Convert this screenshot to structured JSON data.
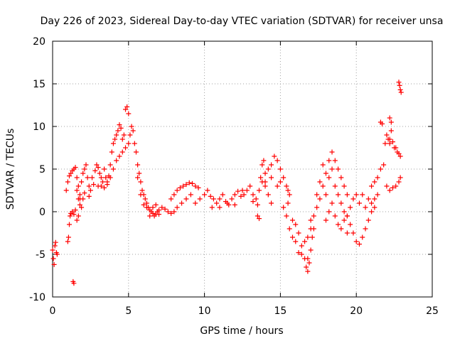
{
  "chart_data": {
    "type": "scatter",
    "title": "Day 226 of 2023, Sidereal Day-to-day VTEC variation (SDTVAR) for receiver unsa",
    "xlabel": "GPS time / hours",
    "ylabel": "SDTVAR / TECUs",
    "xlim": [
      0,
      25
    ],
    "ylim": [
      -10,
      20
    ],
    "x_ticks": [
      0,
      5,
      10,
      15,
      20,
      25
    ],
    "y_ticks": [
      -10,
      -5,
      0,
      5,
      10,
      15,
      20
    ],
    "grid": true,
    "marker": "+",
    "colors": {
      "series": "#ff0000",
      "grid": "#a0a0a0",
      "axis": "#000000"
    },
    "series": [
      {
        "name": "SDTVAR",
        "points": [
          [
            0.0,
            -4.5
          ],
          [
            0.05,
            -5.5
          ],
          [
            0.1,
            -6.2
          ],
          [
            0.15,
            -4.0
          ],
          [
            0.2,
            -3.6
          ],
          [
            0.25,
            -4.8
          ],
          [
            0.3,
            -5.0
          ],
          [
            1.0,
            -3.5
          ],
          [
            1.05,
            -3.0
          ],
          [
            1.1,
            -1.5
          ],
          [
            1.15,
            -0.5
          ],
          [
            1.2,
            -0.2
          ],
          [
            1.3,
            0.0
          ],
          [
            1.4,
            -0.3
          ],
          [
            1.5,
            0.2
          ],
          [
            1.6,
            -1.0
          ],
          [
            1.7,
            -0.5
          ],
          [
            1.8,
            1.5
          ],
          [
            1.9,
            0.5
          ],
          [
            2.0,
            1.5
          ],
          [
            1.35,
            -8.2
          ],
          [
            1.4,
            -8.4
          ],
          [
            0.9,
            2.5
          ],
          [
            1.0,
            3.5
          ],
          [
            1.1,
            4.2
          ],
          [
            1.2,
            4.5
          ],
          [
            1.3,
            4.8
          ],
          [
            1.4,
            5.0
          ],
          [
            1.5,
            5.2
          ],
          [
            1.6,
            4.0
          ],
          [
            1.7,
            3.0
          ],
          [
            1.8,
            2.0
          ],
          [
            1.9,
            3.5
          ],
          [
            2.0,
            4.5
          ],
          [
            2.1,
            5.0
          ],
          [
            2.2,
            5.5
          ],
          [
            2.3,
            4.0
          ],
          [
            2.4,
            3.0
          ],
          [
            2.5,
            2.5
          ],
          [
            1.6,
            2.5
          ],
          [
            1.7,
            1.5
          ],
          [
            1.8,
            0.8
          ],
          [
            2.1,
            2.2
          ],
          [
            2.4,
            1.8
          ],
          [
            2.6,
            4.0
          ],
          [
            2.7,
            3.2
          ],
          [
            2.8,
            4.8
          ],
          [
            2.9,
            5.5
          ],
          [
            3.0,
            5.2
          ],
          [
            3.1,
            4.5
          ],
          [
            3.2,
            3.0
          ],
          [
            3.3,
            3.5
          ],
          [
            3.4,
            5.0
          ],
          [
            3.5,
            4.0
          ],
          [
            3.6,
            3.5
          ],
          [
            3.7,
            4.2
          ],
          [
            3.8,
            5.5
          ],
          [
            3.9,
            7.0
          ],
          [
            4.0,
            8.0
          ],
          [
            4.1,
            8.5
          ],
          [
            4.2,
            9.0
          ],
          [
            4.3,
            9.5
          ],
          [
            4.4,
            10.2
          ],
          [
            4.5,
            9.8
          ],
          [
            4.6,
            8.5
          ],
          [
            4.7,
            9.0
          ],
          [
            4.8,
            12.0
          ],
          [
            4.9,
            12.3
          ],
          [
            5.0,
            11.5
          ],
          [
            3.0,
            3.0
          ],
          [
            3.2,
            4.0
          ],
          [
            3.4,
            2.8
          ],
          [
            3.6,
            3.2
          ],
          [
            3.8,
            4.0
          ],
          [
            4.0,
            5.0
          ],
          [
            4.2,
            6.0
          ],
          [
            4.4,
            6.5
          ],
          [
            4.6,
            7.0
          ],
          [
            4.8,
            7.5
          ],
          [
            5.0,
            8.0
          ],
          [
            5.1,
            9.0
          ],
          [
            5.2,
            10.0
          ],
          [
            5.3,
            9.5
          ],
          [
            5.4,
            8.0
          ],
          [
            5.5,
            7.0
          ],
          [
            5.6,
            5.5
          ],
          [
            5.7,
            4.5
          ],
          [
            5.8,
            3.5
          ],
          [
            5.9,
            2.5
          ],
          [
            6.0,
            2.0
          ],
          [
            6.1,
            1.5
          ],
          [
            6.2,
            1.0
          ],
          [
            6.3,
            0.5
          ],
          [
            6.4,
            0.2
          ],
          [
            6.5,
            0.0
          ],
          [
            6.6,
            -0.2
          ],
          [
            6.7,
            -0.5
          ],
          [
            6.8,
            -0.3
          ],
          [
            6.9,
            0.0
          ],
          [
            7.0,
            0.2
          ],
          [
            7.2,
            0.5
          ],
          [
            7.4,
            0.3
          ],
          [
            7.6,
            0.0
          ],
          [
            7.8,
            -0.2
          ],
          [
            8.0,
            0.0
          ],
          [
            5.6,
            4.0
          ],
          [
            5.8,
            2.0
          ],
          [
            6.0,
            0.8
          ],
          [
            6.2,
            0.5
          ],
          [
            6.4,
            -0.5
          ],
          [
            6.6,
            0.5
          ],
          [
            6.8,
            0.8
          ],
          [
            7.0,
            -0.3
          ],
          [
            7.8,
            1.5
          ],
          [
            8.0,
            2.0
          ],
          [
            8.2,
            2.5
          ],
          [
            8.4,
            2.8
          ],
          [
            8.6,
            3.0
          ],
          [
            8.8,
            3.2
          ],
          [
            9.0,
            3.4
          ],
          [
            9.2,
            3.3
          ],
          [
            9.4,
            3.0
          ],
          [
            9.6,
            2.8
          ],
          [
            8.2,
            0.5
          ],
          [
            8.5,
            1.0
          ],
          [
            8.8,
            1.5
          ],
          [
            9.1,
            2.0
          ],
          [
            9.4,
            1.0
          ],
          [
            9.7,
            1.5
          ],
          [
            10.0,
            2.0
          ],
          [
            10.2,
            2.5
          ],
          [
            10.4,
            1.8
          ],
          [
            10.6,
            1.5
          ],
          [
            10.8,
            1.0
          ],
          [
            11.0,
            1.5
          ],
          [
            11.2,
            2.0
          ],
          [
            11.4,
            1.2
          ],
          [
            11.6,
            0.8
          ],
          [
            11.8,
            1.5
          ],
          [
            12.0,
            2.0
          ],
          [
            12.2,
            2.4
          ],
          [
            12.4,
            1.8
          ],
          [
            12.6,
            2.0
          ],
          [
            10.5,
            0.5
          ],
          [
            11.0,
            0.5
          ],
          [
            11.5,
            1.0
          ],
          [
            12.0,
            0.8
          ],
          [
            12.5,
            2.5
          ],
          [
            12.8,
            2.5
          ],
          [
            13.0,
            3.0
          ],
          [
            13.2,
            2.0
          ],
          [
            13.4,
            1.5
          ],
          [
            13.6,
            2.5
          ],
          [
            13.8,
            3.5
          ],
          [
            14.0,
            3.0
          ],
          [
            14.2,
            2.0
          ],
          [
            14.4,
            1.0
          ],
          [
            13.2,
            1.2
          ],
          [
            13.5,
            0.8
          ],
          [
            13.5,
            -0.5
          ],
          [
            13.6,
            -0.8
          ],
          [
            13.7,
            4.0
          ],
          [
            13.8,
            5.5
          ],
          [
            13.9,
            6.0
          ],
          [
            14.0,
            4.5
          ],
          [
            14.2,
            5.0
          ],
          [
            14.4,
            5.5
          ],
          [
            14.6,
            6.5
          ],
          [
            14.8,
            6.0
          ],
          [
            15.0,
            5.0
          ],
          [
            15.2,
            4.0
          ],
          [
            15.4,
            3.0
          ],
          [
            15.6,
            2.0
          ],
          [
            14.0,
            3.5
          ],
          [
            14.4,
            4.0
          ],
          [
            14.8,
            3.0
          ],
          [
            15.0,
            3.5
          ],
          [
            15.5,
            1.0
          ],
          [
            15.5,
            2.5
          ],
          [
            15.2,
            0.5
          ],
          [
            15.4,
            -0.5
          ],
          [
            15.6,
            -2.0
          ],
          [
            15.8,
            -3.0
          ],
          [
            16.0,
            -1.5
          ],
          [
            16.2,
            -2.5
          ],
          [
            16.4,
            -4.0
          ],
          [
            16.6,
            -5.5
          ],
          [
            16.7,
            -6.5
          ],
          [
            16.8,
            -7.0
          ],
          [
            16.9,
            -6.0
          ],
          [
            17.0,
            -4.5
          ],
          [
            17.1,
            -3.0
          ],
          [
            17.2,
            -2.0
          ],
          [
            15.8,
            -1.0
          ],
          [
            16.0,
            -3.5
          ],
          [
            16.2,
            -4.8
          ],
          [
            16.4,
            -5.0
          ],
          [
            16.6,
            -3.5
          ],
          [
            16.8,
            -5.5
          ],
          [
            17.0,
            -2.0
          ],
          [
            16.8,
            -3.0
          ],
          [
            17.0,
            -1.0
          ],
          [
            17.2,
            -0.5
          ],
          [
            17.4,
            0.5
          ],
          [
            17.6,
            1.5
          ],
          [
            17.8,
            3.0
          ],
          [
            18.0,
            4.5
          ],
          [
            18.2,
            6.0
          ],
          [
            18.4,
            7.0
          ],
          [
            18.6,
            6.0
          ],
          [
            18.8,
            5.0
          ],
          [
            19.0,
            4.0
          ],
          [
            19.2,
            3.0
          ],
          [
            19.4,
            2.0
          ],
          [
            17.4,
            2.0
          ],
          [
            17.6,
            3.5
          ],
          [
            17.8,
            5.5
          ],
          [
            18.0,
            2.0
          ],
          [
            18.2,
            4.0
          ],
          [
            18.4,
            5.0
          ],
          [
            18.6,
            3.0
          ],
          [
            18.8,
            2.0
          ],
          [
            19.0,
            1.0
          ],
          [
            19.2,
            0.0
          ],
          [
            19.4,
            -0.5
          ],
          [
            18.0,
            -1.0
          ],
          [
            18.2,
            0.0
          ],
          [
            18.4,
            1.0
          ],
          [
            18.6,
            -0.5
          ],
          [
            18.8,
            -1.5
          ],
          [
            19.0,
            -2.0
          ],
          [
            19.2,
            -1.0
          ],
          [
            19.4,
            -0.5
          ],
          [
            19.4,
            -2.5
          ],
          [
            19.6,
            -1.5
          ],
          [
            19.8,
            -2.5
          ],
          [
            20.0,
            -3.5
          ],
          [
            20.2,
            -3.8
          ],
          [
            20.4,
            -3.0
          ],
          [
            20.6,
            -2.0
          ],
          [
            20.8,
            -1.0
          ],
          [
            21.0,
            0.0
          ],
          [
            21.2,
            0.5
          ],
          [
            19.6,
            0.5
          ],
          [
            19.8,
            1.5
          ],
          [
            20.0,
            2.0
          ],
          [
            20.2,
            1.0
          ],
          [
            20.4,
            2.0
          ],
          [
            20.6,
            0.5
          ],
          [
            20.8,
            1.5
          ],
          [
            21.0,
            1.0
          ],
          [
            21.2,
            1.5
          ],
          [
            21.4,
            2.0
          ],
          [
            21.0,
            3.0
          ],
          [
            21.2,
            3.5
          ],
          [
            21.4,
            4.0
          ],
          [
            21.6,
            5.0
          ],
          [
            21.8,
            5.5
          ],
          [
            22.0,
            3.0
          ],
          [
            22.2,
            2.5
          ],
          [
            22.4,
            2.8
          ],
          [
            22.6,
            3.0
          ],
          [
            22.8,
            3.5
          ],
          [
            22.9,
            4.0
          ],
          [
            21.6,
            10.5
          ],
          [
            21.7,
            10.3
          ],
          [
            21.9,
            8.0
          ],
          [
            22.0,
            9.0
          ],
          [
            22.1,
            8.5
          ],
          [
            22.2,
            8.0
          ],
          [
            22.3,
            9.5
          ],
          [
            22.4,
            8.2
          ],
          [
            22.5,
            7.5
          ],
          [
            22.6,
            7.5
          ],
          [
            22.7,
            7.0
          ],
          [
            22.8,
            6.8
          ],
          [
            22.9,
            6.5
          ],
          [
            22.2,
            11.0
          ],
          [
            22.3,
            10.5
          ],
          [
            22.2,
            8.5
          ],
          [
            22.8,
            15.2
          ],
          [
            22.85,
            14.8
          ],
          [
            22.9,
            14.3
          ],
          [
            22.95,
            14.0
          ]
        ]
      }
    ]
  }
}
